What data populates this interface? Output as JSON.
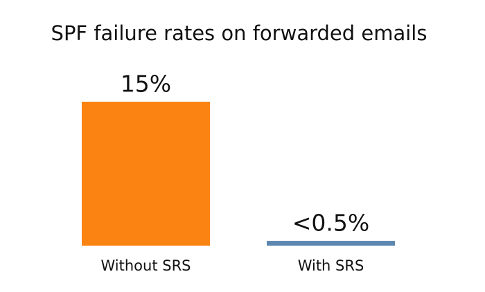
{
  "chart_data": {
    "type": "bar",
    "title": "SPF failure rates on forwarded emails",
    "categories": [
      "Without SRS",
      "With SRS"
    ],
    "values": [
      15,
      0.5
    ],
    "value_labels": [
      "15%",
      "<0.5%"
    ],
    "colors": [
      "#fb8311",
      "#5b87b0"
    ]
  }
}
